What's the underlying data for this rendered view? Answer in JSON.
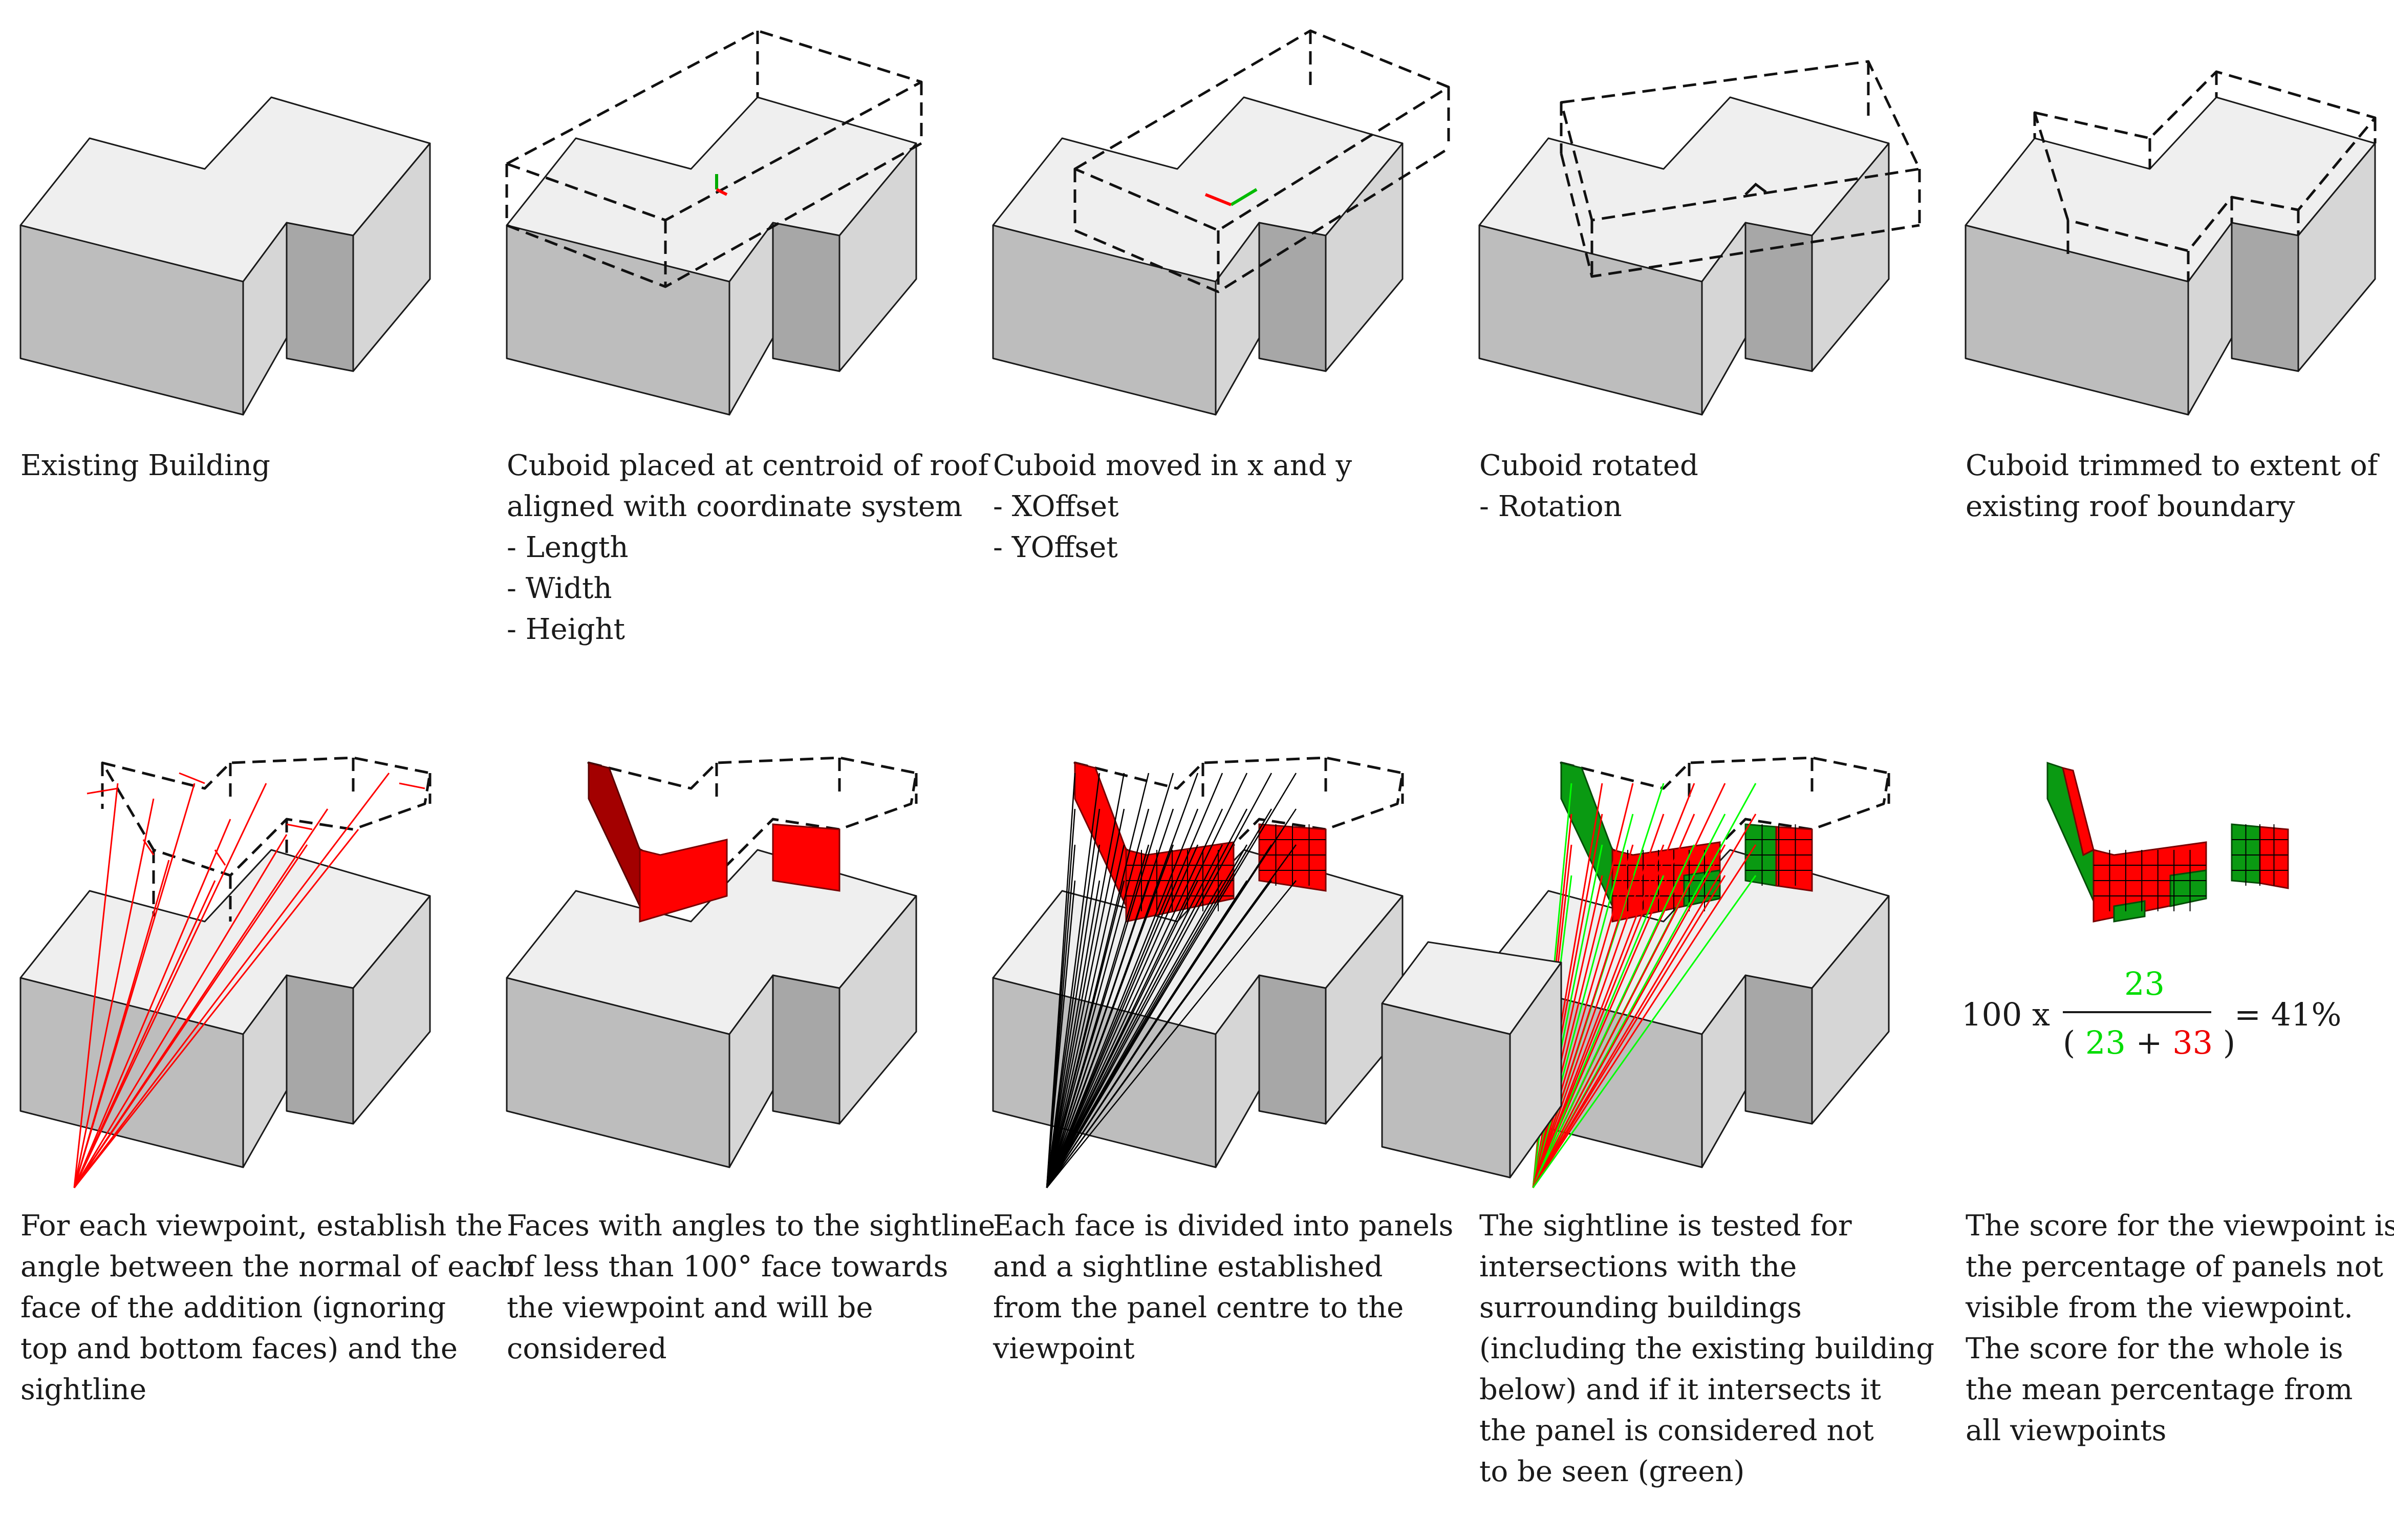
{
  "steps": [
    {
      "lines": [
        "Existing Building"
      ]
    },
    {
      "lines": [
        "Cuboid placed at centroid of roof",
        "aligned with coordinate system",
        "- Length",
        "- Width",
        "- Height"
      ]
    },
    {
      "lines": [
        "Cuboid moved in x and y",
        "- XOffset",
        "- YOffset"
      ]
    },
    {
      "lines": [
        "Cuboid rotated",
        "- Rotation"
      ]
    },
    {
      "lines": [
        "Cuboid trimmed to extent of",
        "existing roof boundary"
      ]
    },
    {
      "lines": [
        "For each viewpoint, establish the",
        "angle between the normal of each",
        "face of the addition (ignoring",
        "top and bottom faces) and the",
        "sightline"
      ]
    },
    {
      "lines": [
        "Faces with angles to the sightline",
        "of less than 100° face towards",
        "the viewpoint and will be",
        "considered"
      ]
    },
    {
      "lines": [
        "Each face is divided into panels",
        "and a sightline established",
        "from the panel centre to the",
        "viewpoint"
      ]
    },
    {
      "lines": [
        "The sightline is tested for",
        "intersections with the",
        "surrounding buildings",
        "(including the existing building",
        "below) and if it intersects it",
        "the panel is considered not",
        "to be seen (green)"
      ]
    },
    {
      "lines": [
        "The score for the viewpoint is",
        "the percentage of panels not",
        "visible from the viewpoint.",
        "The score for the whole is",
        "the mean percentage from",
        "all viewpoints"
      ]
    }
  ],
  "formula": {
    "multiplier": "100 x",
    "numerator": "23",
    "open_paren": "(",
    "denominator_a": "23",
    "plus": "+",
    "denominator_b": "33",
    "close_paren": ")",
    "result": "= 41%",
    "colors": {
      "not_seen": "#00dd00",
      "seen": "#ee0000"
    }
  },
  "colors": {
    "roof": "#efefef",
    "front": "#bdbdbd",
    "side": "#d6d6d6",
    "visible_panel": "#ff0000",
    "hidden_panel": "#0a9a12"
  }
}
